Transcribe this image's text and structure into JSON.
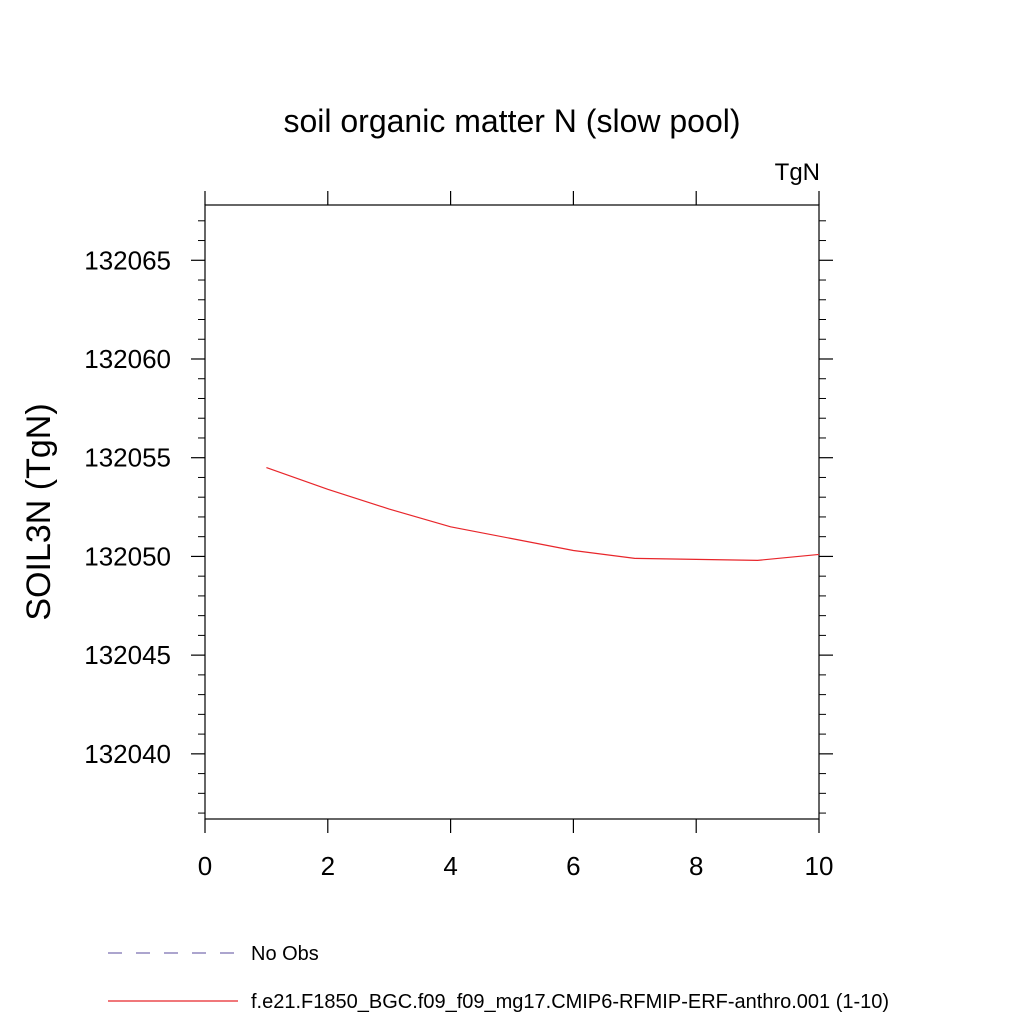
{
  "chart_data": {
    "type": "line",
    "title": "soil organic matter N (slow pool)",
    "units_label": "TgN",
    "ylabel": "SOIL3N  (TgN)",
    "xlabel": "",
    "xlim": [
      0,
      10
    ],
    "ylim": [
      132036.7,
      132067.8
    ],
    "x_ticks": [
      0,
      2,
      4,
      6,
      8,
      10
    ],
    "x_minor_ticks": [],
    "y_ticks": [
      132040,
      132045,
      132050,
      132055,
      132060,
      132065
    ],
    "y_minor_step": 1,
    "grid": false,
    "series": [
      {
        "name": "No Obs",
        "color": "#7b6fb0",
        "dash": true,
        "x": [],
        "values": []
      },
      {
        "name": "f.e21.F1850_BGC.f09_f09_mg17.CMIP6-RFMIP-ERF-anthro.001 (1-10)",
        "color": "#e8262b",
        "dash": false,
        "x": [
          1,
          2,
          3,
          4,
          5,
          6,
          7,
          8,
          9,
          10
        ],
        "values": [
          132054.5,
          132053.4,
          132052.4,
          132051.5,
          132050.9,
          132050.3,
          132049.9,
          132049.85,
          132049.8,
          132050.1
        ]
      }
    ],
    "legend": [
      "No Obs",
      "f.e21.F1850_BGC.f09_f09_mg17.CMIP6-RFMIP-ERF-anthro.001 (1-10)"
    ],
    "legend_position": "bottom"
  }
}
